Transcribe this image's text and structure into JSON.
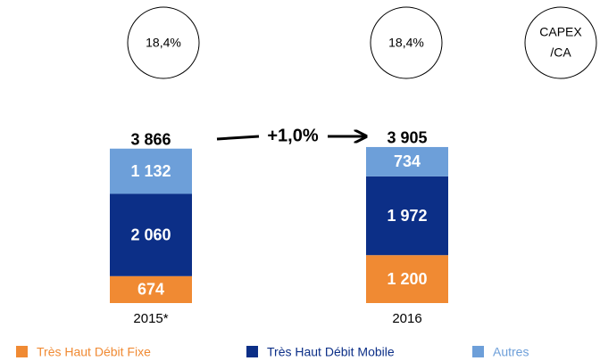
{
  "chart_data": {
    "type": "stacked_bar",
    "categories": [
      "2015*",
      "2016"
    ],
    "series": [
      {
        "name": "Très Haut Débit Fixe",
        "color": "#f08a33",
        "values": [
          674,
          1200
        ],
        "value_labels": [
          "674",
          "1 200"
        ]
      },
      {
        "name": "Très Haut Débit Mobile",
        "color": "#0c2f87",
        "values": [
          2060,
          1972
        ],
        "value_labels": [
          "2 060",
          "1 972"
        ]
      },
      {
        "name": "Autres",
        "color": "#6d9fd9",
        "values": [
          1132,
          734
        ],
        "value_labels": [
          "1 132",
          "734"
        ]
      }
    ],
    "totals": [
      3866,
      3905
    ],
    "total_labels": [
      "3 866",
      "3 905"
    ],
    "ratio_labels": [
      "18,4%",
      "18,4%"
    ],
    "ratio_title": [
      "CAPEX",
      "/CA"
    ],
    "growth_label": "+1,0%",
    "legend": "bottom"
  }
}
